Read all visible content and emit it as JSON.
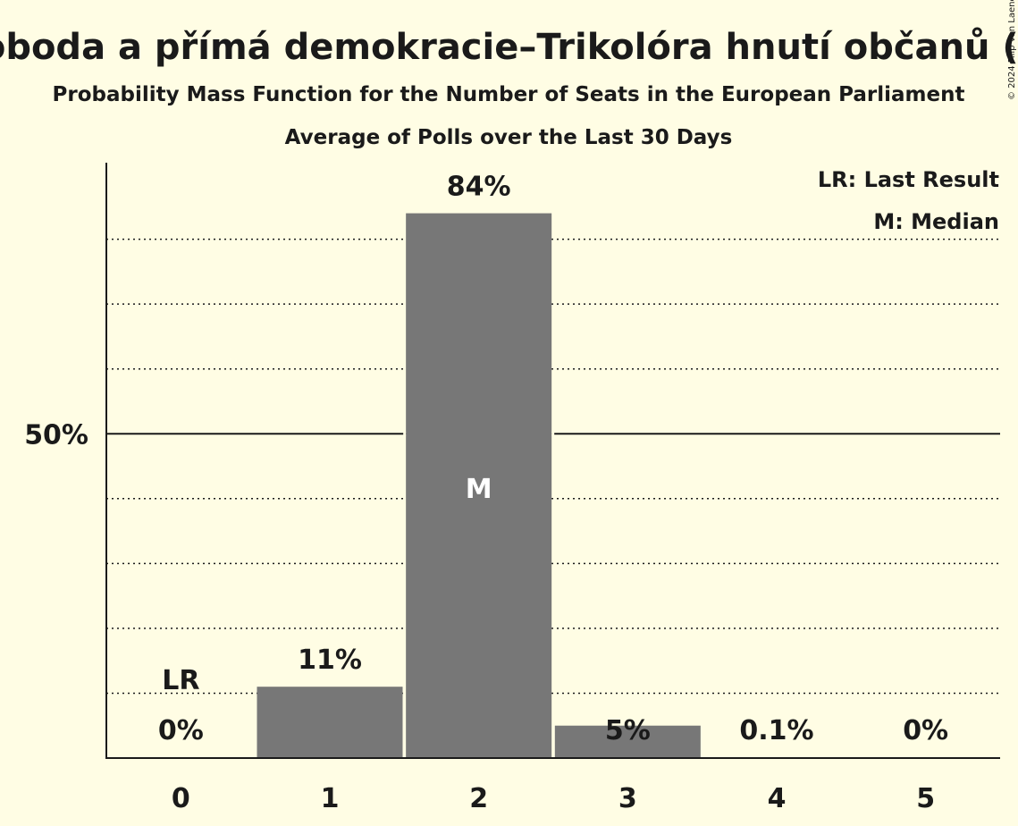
{
  "chart_data": {
    "type": "bar",
    "title": "Svoboda a přímá demokracie–Trikolóra hnutí občanů (ID)",
    "subtitle": "Probability Mass Function for the Number of Seats in the European Parliament",
    "subtitle2": "Average of Polls over the Last 30 Days",
    "categories": [
      "0",
      "1",
      "2",
      "3",
      "4",
      "5"
    ],
    "values": [
      0,
      11,
      84,
      5,
      0.1,
      0
    ],
    "value_labels": [
      "0%",
      "11%",
      "84%",
      "5%",
      "0.1%",
      "0%"
    ],
    "ylim": [
      0,
      92
    ],
    "y_ticks": [
      {
        "value": 50,
        "label": "50%"
      }
    ],
    "minor_gridlines": [
      10,
      20,
      30,
      40,
      60,
      70,
      80
    ],
    "last_result_index": 0,
    "last_result_marker": "LR",
    "median_index": 2,
    "median_marker": "M",
    "legend": [
      "LR: Last Result",
      "M: Median"
    ],
    "legend_position": "top-right",
    "bar_color": "#777777",
    "background_color": "#fffde4",
    "copyright": "© 2024 Filip van Laenen"
  }
}
